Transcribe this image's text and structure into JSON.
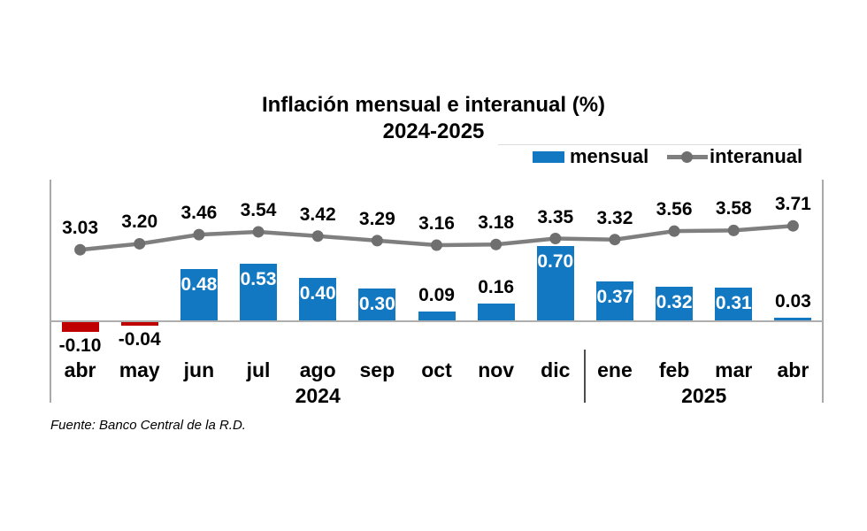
{
  "chart_data": {
    "type": "bar+line",
    "title": "Inflación mensual e interanual (%)",
    "subtitle": "2024-2025",
    "categories": [
      "abr",
      "may",
      "jun",
      "jul",
      "ago",
      "sep",
      "oct",
      "nov",
      "dic",
      "ene",
      "feb",
      "mar",
      "abr"
    ],
    "year_groups": [
      {
        "label": "2024",
        "start_index": 0,
        "end_index": 8
      },
      {
        "label": "2025",
        "start_index": 9,
        "end_index": 12
      }
    ],
    "series": [
      {
        "name": "mensual",
        "type": "bar",
        "values": [
          -0.1,
          -0.04,
          0.48,
          0.53,
          0.4,
          0.3,
          0.09,
          0.16,
          0.7,
          0.37,
          0.32,
          0.31,
          0.03
        ],
        "color_positive": "#1278c2",
        "color_negative": "#c00000",
        "label_color_inside": "#ffffff",
        "label_color_outside": "#000000",
        "inside_label_threshold": 0.3
      },
      {
        "name": "interanual",
        "type": "line",
        "values": [
          3.03,
          3.2,
          3.46,
          3.54,
          3.42,
          3.29,
          3.16,
          3.18,
          3.35,
          3.32,
          3.56,
          3.58,
          3.71
        ],
        "color": "#7f7f7f",
        "marker_color": "#6f6f6f"
      }
    ],
    "legend_position": "top-right",
    "grid": false,
    "value_label_decimals": 2
  },
  "source": "Fuente: Banco Central de la R.D."
}
